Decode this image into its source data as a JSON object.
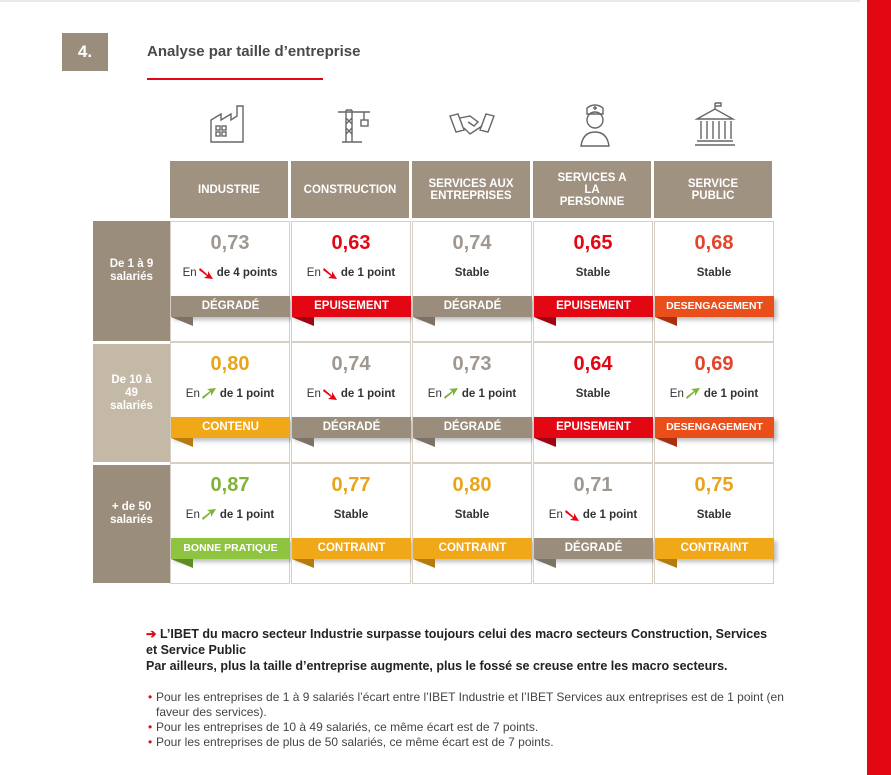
{
  "section": {
    "number": "4.",
    "title": "Analyse par taille d’entreprise"
  },
  "columns": [
    {
      "label": "INDUSTRIE",
      "icon": "factory-icon"
    },
    {
      "label": "CONSTRUCTION",
      "icon": "crane-icon"
    },
    {
      "label": "SERVICES AUX ENTREPRISES",
      "icon": "handshake-icon"
    },
    {
      "label": "SERVICES A LA PERSONNE",
      "icon": "nurse-icon"
    },
    {
      "label": "SERVICE PUBLIC",
      "icon": "public-building-icon"
    }
  ],
  "rows": [
    {
      "label": "De 1 à 9 salariés"
    },
    {
      "label": "De 10 à 49 salariés"
    },
    {
      "label": "+ de 50 salariés"
    }
  ],
  "colors": {
    "red": "#e30613",
    "gray": "#9a8d7c",
    "yellow": "#f0a818",
    "green": "#8ec43f",
    "orange": "#e94e1b",
    "valgray": "#a09890",
    "valyellow": "#e8a41a",
    "valgreen": "#7fb336",
    "valred": "#e30613",
    "valorange": "#e3442a"
  },
  "cells": [
    [
      {
        "value": "0,73",
        "trend": "down",
        "en": "En",
        "amount": "de 4 points",
        "stable": "",
        "status": "DÉGRADÉ",
        "status_color": "gray",
        "value_color": "valgray"
      },
      {
        "value": "0,63",
        "trend": "down",
        "en": "En",
        "amount": "de 1 point",
        "stable": "",
        "status": "EPUISEMENT",
        "status_color": "red",
        "value_color": "valred"
      },
      {
        "value": "0,74",
        "trend": "stable",
        "en": "",
        "amount": "",
        "stable": "Stable",
        "status": "DÉGRADÉ",
        "status_color": "gray",
        "value_color": "valgray"
      },
      {
        "value": "0,65",
        "trend": "stable",
        "en": "",
        "amount": "",
        "stable": "Stable",
        "status": "EPUISEMENT",
        "status_color": "red",
        "value_color": "valred"
      },
      {
        "value": "0,68",
        "trend": "stable",
        "en": "",
        "amount": "",
        "stable": "Stable",
        "status": "DESENGAGEMENT",
        "status_color": "orange",
        "value_color": "valorange"
      }
    ],
    [
      {
        "value": "0,80",
        "trend": "up",
        "en": "En",
        "amount": "de 1 point",
        "stable": "",
        "status": "CONTENU",
        "status_color": "yellow",
        "value_color": "valyellow"
      },
      {
        "value": "0,74",
        "trend": "down",
        "en": "En",
        "amount": "de 1 point",
        "stable": "",
        "status": "DÉGRADÉ",
        "status_color": "gray",
        "value_color": "valgray"
      },
      {
        "value": "0,73",
        "trend": "up",
        "en": "En",
        "amount": "de 1 point",
        "stable": "",
        "status": "DÉGRADÉ",
        "status_color": "gray",
        "value_color": "valgray"
      },
      {
        "value": "0,64",
        "trend": "stable",
        "en": "",
        "amount": "",
        "stable": "Stable",
        "status": "EPUISEMENT",
        "status_color": "red",
        "value_color": "valred"
      },
      {
        "value": "0,69",
        "trend": "up",
        "en": "En",
        "amount": "de 1 point",
        "stable": "",
        "status": "DESENGAGEMENT",
        "status_color": "orange",
        "value_color": "valorange"
      }
    ],
    [
      {
        "value": "0,87",
        "trend": "up",
        "en": "En",
        "amount": "de 1 point",
        "stable": "",
        "status": "BONNE PRATIQUE",
        "status_color": "green",
        "value_color": "valgreen"
      },
      {
        "value": "0,77",
        "trend": "stable",
        "en": "",
        "amount": "",
        "stable": "Stable",
        "status": "CONTRAINT",
        "status_color": "yellow",
        "value_color": "valyellow"
      },
      {
        "value": "0,80",
        "trend": "stable",
        "en": "",
        "amount": "",
        "stable": "Stable",
        "status": "CONTRAINT",
        "status_color": "yellow",
        "value_color": "valyellow"
      },
      {
        "value": "0,71",
        "trend": "down",
        "en": "En",
        "amount": "de 1 point",
        "stable": "",
        "status": "DÉGRADÉ",
        "status_color": "gray",
        "value_color": "valgray"
      },
      {
        "value": "0,75",
        "trend": "stable",
        "en": "",
        "amount": "",
        "stable": "Stable",
        "status": "CONTRAINT",
        "status_color": "yellow",
        "value_color": "valyellow"
      }
    ]
  ],
  "conclusion": {
    "arrow": "➔",
    "line1": "L’IBET du macro secteur Industrie surpasse toujours celui des macro secteurs Construction, Services et Service Public",
    "line2": "Par ailleurs, plus la taille d’entreprise augmente, plus le fossé se creuse entre les macro secteurs."
  },
  "bullets": [
    "Pour les entreprises de 1 à 9 salariés l’écart entre l’IBET Industrie et l’IBET Services aux entreprises est de 1 point (en faveur des services).",
    "Pour les entreprises de 10 à 49 salariés, ce même écart est de 7 points.",
    "Pour les entreprises de plus de 50 salariés, ce même écart est de 7 points."
  ]
}
